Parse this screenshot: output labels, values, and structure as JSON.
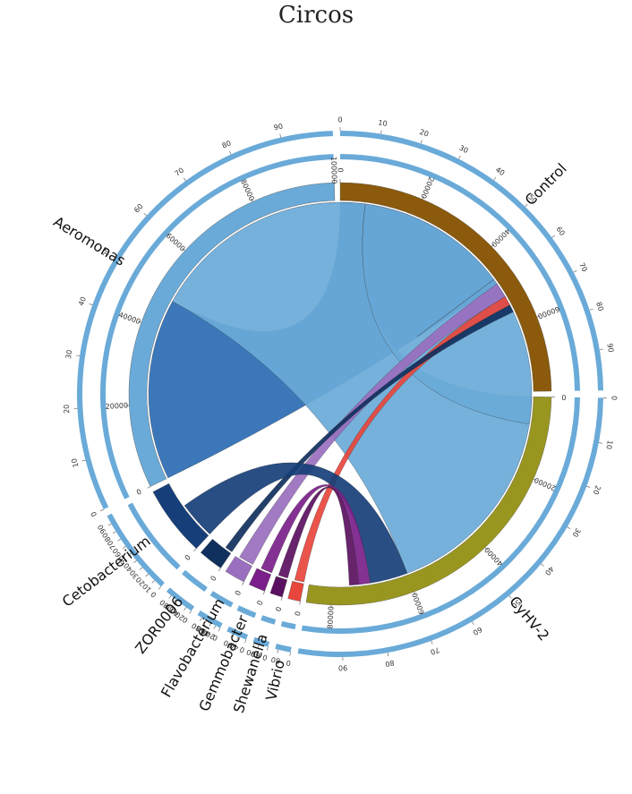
{
  "chart_data": {
    "type": "chord",
    "title": "Circos",
    "colors": {
      "control": "#8b5a0c",
      "cyhv2": "#999620",
      "aeromonas_bg": "#6aaad8",
      "aeromonas_dark": "#2b6cb3",
      "zor0006": "#10305e",
      "cetobacterium": "#163f7a",
      "flavobacterium": "#9a6fbf",
      "gemmobacter": "#7b1f8a",
      "shewanella": "#5a1060",
      "vibrio": "#e8453c",
      "outer_bar": "#6aaad8"
    },
    "segments": [
      {
        "name": "Control",
        "size": 78000,
        "color": "#8b5a0c",
        "ticks": [
          0,
          20000,
          40000,
          60000
        ],
        "pct_ticks": [
          0,
          10,
          20,
          30,
          40,
          50,
          60,
          70,
          80,
          90
        ]
      },
      {
        "name": "CyHV-2",
        "size": 86000,
        "color": "#999620",
        "ticks": [
          0,
          20000,
          40000,
          60000,
          80000
        ],
        "pct_ticks": [
          0,
          10,
          20,
          30,
          40,
          50,
          60,
          70,
          80,
          90
        ]
      },
      {
        "name": "Vibrio",
        "size": 3000,
        "color": "#e8453c",
        "ticks": [
          0
        ],
        "pct_ticks": [
          0,
          80
        ]
      },
      {
        "name": "Shewanella",
        "size": 3000,
        "color": "#5a1060",
        "ticks": [
          0
        ],
        "pct_ticks": [
          0,
          60,
          90
        ]
      },
      {
        "name": "Gemmobacter",
        "size": 4000,
        "color": "#7b1f8a",
        "ticks": [
          0
        ],
        "pct_ticks": [
          0,
          40,
          70
        ]
      },
      {
        "name": "Flavobacterium",
        "size": 5000,
        "color": "#9a6fbf",
        "ticks": [
          0
        ],
        "pct_ticks": [
          0,
          20,
          40,
          60,
          80
        ]
      },
      {
        "name": "ZOR0006",
        "size": 6000,
        "color": "#10305e",
        "ticks": [
          0
        ],
        "pct_ticks": [
          0,
          20,
          40,
          60,
          80
        ]
      },
      {
        "name": "Cetobacterium",
        "size": 17000,
        "color": "#163f7a",
        "ticks": [
          0
        ],
        "pct_ticks": [
          0,
          10,
          20,
          30,
          40,
          50,
          60,
          70,
          80,
          90
        ]
      },
      {
        "name": "Aeromonas",
        "size": 100000,
        "color": "#6aaad8",
        "ticks": [
          0,
          20000,
          40000,
          60000,
          80000,
          100000
        ],
        "pct_ticks": [
          0,
          10,
          20,
          30,
          40,
          50,
          60,
          70,
          80,
          90
        ]
      }
    ],
    "links": [
      {
        "source": "Aeromonas",
        "target": "Control",
        "value": 48000,
        "color": "#2b6cb3"
      },
      {
        "source": "Aeromonas",
        "target": "CyHV-2",
        "value": 60000,
        "color": "#6aaad8"
      },
      {
        "source": "Aeromonas",
        "target": "Aeromonas",
        "value": 40000,
        "color": "#6aaad8"
      },
      {
        "source": "Flavobacterium",
        "target": "Control",
        "value": 4000,
        "color": "#9a6fbf"
      },
      {
        "source": "Vibrio",
        "target": "Control",
        "value": 2500,
        "color": "#e8453c"
      },
      {
        "source": "ZOR0006",
        "target": "Control",
        "value": 2000,
        "color": "#10305e"
      },
      {
        "source": "Cetobacterium",
        "target": "CyHV-2",
        "value": 10000,
        "color": "#163f7a"
      },
      {
        "source": "Gemmobacter",
        "target": "CyHV-2",
        "value": 3000,
        "color": "#7b1f8a"
      },
      {
        "source": "Shewanella",
        "target": "CyHV-2",
        "value": 2500,
        "color": "#5a1060"
      }
    ]
  }
}
